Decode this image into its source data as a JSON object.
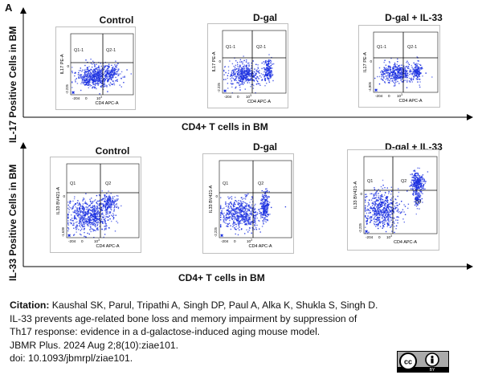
{
  "figure": {
    "panel_letter": "A",
    "row1": {
      "y_label": "IL-17 Positive Cells in BM",
      "x_label": "CD4+ T cells in BM"
    },
    "row2": {
      "y_label": "IL-33 Positive Cells in BM",
      "x_label": "CD4+ T cells in BM"
    }
  },
  "chart_data": [
    {
      "type": "scatter",
      "title": "Control",
      "xlabel": "CD4 APC-A",
      "ylabel": "IL17 PE-A",
      "quadrants": [
        "Q1-1",
        "Q2-1"
      ],
      "x_ticks": [
        "-204",
        "0",
        "10^3"
      ],
      "y_ticks": [
        "-2.225",
        "0"
      ],
      "color": "#1a2fe0"
    },
    {
      "type": "scatter",
      "title": "D-gal",
      "xlabel": "CD4 APC-A",
      "ylabel": "IL17 PE-A",
      "quadrants": [
        "Q1-1",
        "Q2-1"
      ],
      "x_ticks": [
        "-204",
        "0",
        "10^3"
      ],
      "y_ticks": [
        "-2.225",
        "0"
      ],
      "color": "#1a2fe0"
    },
    {
      "type": "scatter",
      "title": "D-gal + IL-33",
      "xlabel": "CD4 APC-A",
      "ylabel": "IL17 PE-A",
      "quadrants": [
        "Q1-1",
        "Q2-1"
      ],
      "x_ticks": [
        "-204",
        "0",
        "10^3"
      ],
      "y_ticks": [
        "-4,905",
        "0"
      ],
      "color": "#1a2fe0"
    },
    {
      "type": "scatter",
      "title": "Control",
      "xlabel": "CD4 APC-A",
      "ylabel": "IL33 BV421-A",
      "quadrants": [
        "Q1",
        "Q2"
      ],
      "x_ticks": [
        "-204",
        "0",
        "10^3"
      ],
      "y_ticks": [
        "-1,639",
        "0"
      ],
      "color": "#1a2fe0"
    },
    {
      "type": "scatter",
      "title": "D-gal",
      "xlabel": "CD4 APC-A",
      "ylabel": "IL33 BV421-A",
      "quadrants": [
        "Q1",
        "Q2"
      ],
      "x_ticks": [
        "-204",
        "0",
        "10^3"
      ],
      "y_ticks": [
        "-2,225",
        "0"
      ],
      "color": "#1a2fe0"
    },
    {
      "type": "scatter",
      "title": "D-gal + IL-33",
      "xlabel": "CD4 APC-A",
      "ylabel": "IL33 BV421-A",
      "quadrants": [
        "Q1",
        "Q2",
        "Q4"
      ],
      "x_ticks": [
        "-204",
        "0",
        "10^3"
      ],
      "y_ticks": [
        "-2,225",
        "0"
      ],
      "color": "#1a2fe0"
    }
  ],
  "citation": {
    "label": "Citation:",
    "line1": " Kaushal SK, Parul, Tripathi A, Singh DP, Paul A, Alka K, Shukla S, Singh D.",
    "line2": "IL-33 prevents age-related bone loss and memory impairment by suppression of",
    "line3": "Th17 response: evidence in a d-galactose-induced aging mouse model.",
    "line4": "JBMR Plus. 2024 Aug 2;8(10):ziae101.",
    "line5": "doi: 10.1093/jbmrpl/ziae101."
  },
  "license_badge": {
    "cc": "cc",
    "by": "BY"
  }
}
